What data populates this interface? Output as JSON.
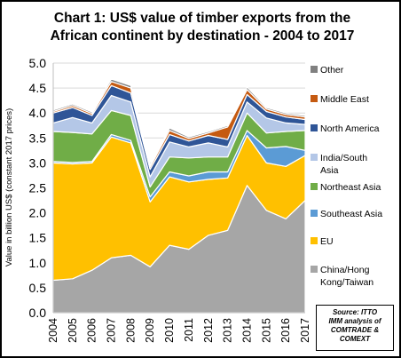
{
  "chart_data": {
    "type": "area",
    "stacked": true,
    "title_lines": [
      "Chart 1: US$ value of timber exports from the",
      "African continent by destination - 2004 to 2017"
    ],
    "ylabel": "Value in billion US$ (constant 2017 prices)",
    "xlabel": "",
    "ylim": [
      0,
      5
    ],
    "y_ticks": [
      "0.0",
      "0.5",
      "1.0",
      "1.5",
      "2.0",
      "2.5",
      "3.0",
      "3.5",
      "4.0",
      "4.5",
      "5.0"
    ],
    "categories": [
      "2004",
      "2005",
      "2006",
      "2007",
      "2008",
      "2009",
      "2010",
      "2011",
      "2012",
      "2013",
      "2014",
      "2015",
      "2016",
      "2017"
    ],
    "legend_position": "right",
    "series": [
      {
        "name": "China/Hong Kong/Taiwan",
        "legend_lines": [
          "China/Hong",
          "Kong/Taiwan"
        ],
        "color": "#a6a6a6",
        "values": [
          0.65,
          0.68,
          0.85,
          1.1,
          1.15,
          0.92,
          1.35,
          1.27,
          1.55,
          1.65,
          2.55,
          2.05,
          1.88,
          2.25
        ]
      },
      {
        "name": "EU",
        "legend_lines": [
          "EU"
        ],
        "color": "#ffc000",
        "values": [
          2.35,
          2.3,
          2.15,
          2.42,
          2.25,
          1.3,
          1.37,
          1.35,
          1.12,
          1.05,
          1.0,
          0.95,
          1.05,
          0.9
        ]
      },
      {
        "name": "Southeast Asia",
        "legend_lines": [
          "Southeast Asia"
        ],
        "color": "#5b9bd5",
        "values": [
          0.03,
          0.03,
          0.03,
          0.05,
          0.05,
          0.1,
          0.1,
          0.12,
          0.15,
          0.12,
          0.1,
          0.3,
          0.4,
          0.1
        ]
      },
      {
        "name": "Northeast Asia",
        "legend_lines": [
          "Northeast Asia"
        ],
        "color": "#70ad47",
        "values": [
          0.6,
          0.6,
          0.55,
          0.48,
          0.5,
          0.2,
          0.3,
          0.36,
          0.3,
          0.3,
          0.35,
          0.3,
          0.3,
          0.4
        ]
      },
      {
        "name": "India/South Asia",
        "legend_lines": [
          "India/South",
          "Asia"
        ],
        "color": "#b4c7e7",
        "values": [
          0.17,
          0.3,
          0.22,
          0.3,
          0.27,
          0.2,
          0.3,
          0.22,
          0.28,
          0.2,
          0.22,
          0.3,
          0.17,
          0.12
        ]
      },
      {
        "name": "North America",
        "legend_lines": [
          "North America"
        ],
        "color": "#2f5597",
        "values": [
          0.2,
          0.2,
          0.15,
          0.2,
          0.18,
          0.15,
          0.15,
          0.12,
          0.15,
          0.15,
          0.15,
          0.13,
          0.12,
          0.1
        ]
      },
      {
        "name": "Middle East",
        "legend_lines": [
          "Middle East"
        ],
        "color": "#c55a11",
        "values": [
          0.03,
          0.04,
          0.04,
          0.08,
          0.1,
          0.05,
          0.08,
          0.05,
          0.05,
          0.25,
          0.1,
          0.05,
          0.05,
          0.05
        ]
      },
      {
        "name": "Other",
        "legend_lines": [
          "Other"
        ],
        "color": "#808080",
        "values": [
          0.03,
          0.03,
          0.03,
          0.05,
          0.05,
          0.03,
          0.05,
          0.03,
          0.03,
          0.03,
          0.05,
          0.03,
          0.03,
          0.03
        ]
      }
    ]
  },
  "source_lines": [
    "Source: ITTO",
    "IMM analysis of",
    "COMTRADE &",
    "COMEXT"
  ]
}
